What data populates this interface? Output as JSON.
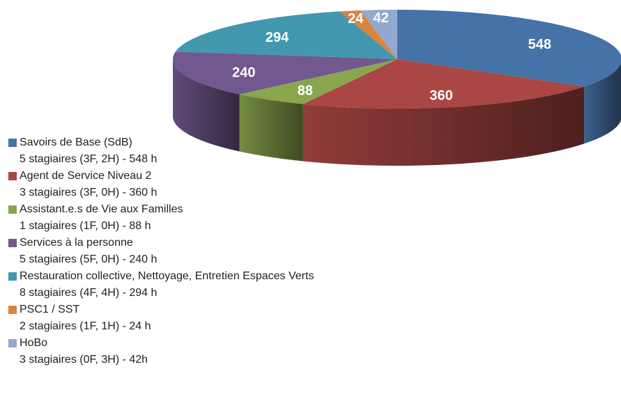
{
  "chart_data": {
    "type": "pie3d",
    "categories": [
      "Savoirs de Base (SdB)",
      "Agent de Service Niveau 2",
      "Assistant.e.s de Vie aux Familles",
      "Services à la personne",
      "Restauration collective, Nettoyage, Entretien Espaces Verts",
      "PSC1 / SST",
      "HoBo"
    ],
    "descriptions": [
      "5 stagiaires (3F, 2H) - 548 h",
      "3 stagiaires (3F, 0H) - 360 h",
      "1 stagiaires (1F, 0H) - 88 h",
      "5 stagiaires (5F, 0H) - 240 h",
      "8 stagiaires (4F, 4H) - 294 h",
      "2 stagiaires (1F, 1H) - 24 h",
      "3 stagiaires (0F, 3H) - 42h"
    ],
    "values": [
      548,
      360,
      88,
      240,
      294,
      24,
      42
    ],
    "colors": [
      "#4572a7",
      "#aa4643",
      "#89a54e",
      "#71588f",
      "#4198af",
      "#db843d",
      "#93a9cf"
    ],
    "legend": "left"
  }
}
